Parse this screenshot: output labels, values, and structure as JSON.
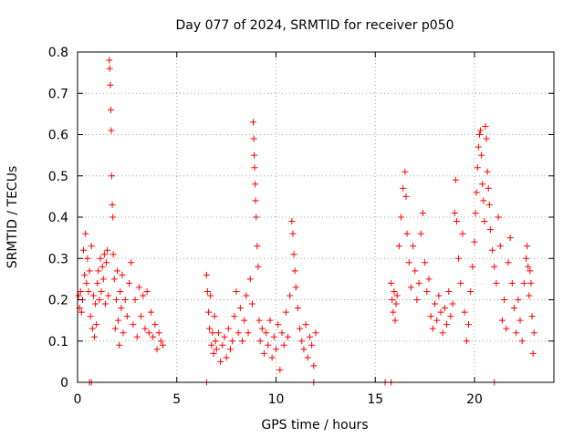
{
  "chart_data": {
    "type": "scatter",
    "title": "Day 077 of 2024, SRMTID for receiver p050",
    "xlabel": "GPS time / hours",
    "ylabel": "SRMTID / TECUs",
    "xlim": [
      0,
      24
    ],
    "ylim": [
      0,
      0.8
    ],
    "xticks": [
      0,
      5,
      10,
      15,
      20
    ],
    "xtick_labels": [
      "0",
      "5",
      "10",
      "15",
      "20"
    ],
    "yticks": [
      0,
      0.1,
      0.2,
      0.3,
      0.4,
      0.5,
      0.6,
      0.7,
      0.8
    ],
    "ytick_labels": [
      "0",
      "0.1",
      "0.2",
      "0.3",
      "0.4",
      "0.5",
      "0.6",
      "0.7",
      "0.8"
    ],
    "grid": true,
    "marker": "+",
    "color": "#ff0000",
    "series": [
      {
        "name": "SRMTID",
        "points": [
          [
            0.05,
            0.21
          ],
          [
            0.1,
            0.18
          ],
          [
            0.15,
            0.22
          ],
          [
            0.2,
            0.17
          ],
          [
            0.25,
            0.2
          ],
          [
            0.3,
            0.32
          ],
          [
            0.35,
            0.26
          ],
          [
            0.4,
            0.36
          ],
          [
            0.45,
            0.24
          ],
          [
            0.5,
            0.3
          ],
          [
            0.55,
            0.22
          ],
          [
            0.6,
            0.27
          ],
          [
            0.65,
            0.16
          ],
          [
            0.7,
            0.33
          ],
          [
            0.75,
            0.13
          ],
          [
            0.8,
            0.21
          ],
          [
            0.85,
            0.11
          ],
          [
            0.9,
            0.19
          ],
          [
            0.95,
            0.14
          ],
          [
            1.0,
            0.24
          ],
          [
            1.05,
            0.27
          ],
          [
            1.1,
            0.2
          ],
          [
            1.15,
            0.3
          ],
          [
            1.2,
            0.22
          ],
          [
            1.25,
            0.28
          ],
          [
            1.3,
            0.25
          ],
          [
            1.35,
            0.31
          ],
          [
            1.4,
            0.19
          ],
          [
            1.45,
            0.29
          ],
          [
            1.5,
            0.32
          ],
          [
            1.55,
            0.21
          ],
          [
            1.6,
            0.78
          ],
          [
            1.62,
            0.76
          ],
          [
            1.65,
            0.72
          ],
          [
            1.68,
            0.66
          ],
          [
            1.7,
            0.61
          ],
          [
            1.72,
            0.5
          ],
          [
            1.75,
            0.43
          ],
          [
            1.78,
            0.4
          ],
          [
            1.8,
            0.31
          ],
          [
            1.85,
            0.25
          ],
          [
            1.9,
            0.13
          ],
          [
            1.95,
            0.2
          ],
          [
            2.0,
            0.27
          ],
          [
            2.05,
            0.15
          ],
          [
            2.1,
            0.09
          ],
          [
            2.15,
            0.22
          ],
          [
            2.2,
            0.18
          ],
          [
            2.25,
            0.26
          ],
          [
            2.3,
            0.12
          ],
          [
            2.4,
            0.2
          ],
          [
            2.5,
            0.16
          ],
          [
            2.6,
            0.24
          ],
          [
            2.7,
            0.29
          ],
          [
            2.8,
            0.14
          ],
          [
            2.9,
            0.2
          ],
          [
            3.0,
            0.11
          ],
          [
            3.1,
            0.23
          ],
          [
            3.2,
            0.16
          ],
          [
            3.3,
            0.21
          ],
          [
            3.4,
            0.13
          ],
          [
            3.5,
            0.22
          ],
          [
            3.6,
            0.12
          ],
          [
            3.7,
            0.17
          ],
          [
            3.8,
            0.11
          ],
          [
            3.9,
            0.14
          ],
          [
            4.0,
            0.08
          ],
          [
            4.1,
            0.12
          ],
          [
            4.2,
            0.1
          ],
          [
            4.3,
            0.09
          ],
          [
            0.6,
            0.0
          ],
          [
            0.7,
            0.0
          ],
          [
            6.5,
            0.26
          ],
          [
            6.55,
            0.22
          ],
          [
            6.6,
            0.17
          ],
          [
            6.65,
            0.13
          ],
          [
            6.7,
            0.21
          ],
          [
            6.75,
            0.09
          ],
          [
            6.8,
            0.12
          ],
          [
            6.85,
            0.07
          ],
          [
            6.9,
            0.16
          ],
          [
            6.95,
            0.1
          ],
          [
            7.0,
            0.08
          ],
          [
            7.1,
            0.12
          ],
          [
            7.2,
            0.05
          ],
          [
            7.3,
            0.09
          ],
          [
            7.4,
            0.11
          ],
          [
            7.5,
            0.06
          ],
          [
            7.6,
            0.13
          ],
          [
            7.7,
            0.08
          ],
          [
            7.8,
            0.1
          ],
          [
            7.9,
            0.16
          ],
          [
            8.0,
            0.22
          ],
          [
            8.1,
            0.12
          ],
          [
            8.2,
            0.18
          ],
          [
            8.3,
            0.1
          ],
          [
            8.4,
            0.15
          ],
          [
            8.5,
            0.21
          ],
          [
            8.6,
            0.12
          ],
          [
            8.7,
            0.25
          ],
          [
            8.8,
            0.19
          ],
          [
            8.85,
            0.63
          ],
          [
            8.88,
            0.59
          ],
          [
            8.9,
            0.55
          ],
          [
            8.92,
            0.52
          ],
          [
            8.95,
            0.48
          ],
          [
            8.97,
            0.44
          ],
          [
            9.0,
            0.4
          ],
          [
            9.05,
            0.33
          ],
          [
            9.1,
            0.28
          ],
          [
            9.15,
            0.15
          ],
          [
            9.2,
            0.1
          ],
          [
            9.3,
            0.13
          ],
          [
            9.4,
            0.07
          ],
          [
            9.5,
            0.12
          ],
          [
            9.6,
            0.09
          ],
          [
            9.7,
            0.15
          ],
          [
            9.8,
            0.06
          ],
          [
            9.9,
            0.11
          ],
          [
            10.0,
            0.08
          ],
          [
            10.1,
            0.14
          ],
          [
            10.2,
            0.03
          ],
          [
            10.3,
            0.12
          ],
          [
            10.4,
            0.09
          ],
          [
            10.5,
            0.17
          ],
          [
            10.6,
            0.11
          ],
          [
            10.7,
            0.21
          ],
          [
            10.8,
            0.39
          ],
          [
            10.85,
            0.36
          ],
          [
            10.9,
            0.31
          ],
          [
            10.95,
            0.27
          ],
          [
            11.0,
            0.23
          ],
          [
            11.1,
            0.18
          ],
          [
            11.2,
            0.13
          ],
          [
            11.3,
            0.1
          ],
          [
            11.4,
            0.08
          ],
          [
            11.5,
            0.14
          ],
          [
            11.6,
            0.06
          ],
          [
            11.7,
            0.11
          ],
          [
            11.8,
            0.09
          ],
          [
            11.9,
            0.04
          ],
          [
            12.0,
            0.12
          ],
          [
            6.5,
            0.0
          ],
          [
            11.9,
            0.0
          ],
          [
            15.8,
            0.24
          ],
          [
            15.85,
            0.2
          ],
          [
            15.9,
            0.17
          ],
          [
            15.95,
            0.22
          ],
          [
            16.0,
            0.15
          ],
          [
            16.05,
            0.19
          ],
          [
            16.1,
            0.21
          ],
          [
            16.2,
            0.33
          ],
          [
            16.3,
            0.4
          ],
          [
            16.4,
            0.47
          ],
          [
            16.5,
            0.51
          ],
          [
            16.55,
            0.45
          ],
          [
            16.6,
            0.36
          ],
          [
            16.7,
            0.29
          ],
          [
            16.8,
            0.23
          ],
          [
            16.9,
            0.33
          ],
          [
            17.0,
            0.27
          ],
          [
            17.1,
            0.2
          ],
          [
            17.2,
            0.24
          ],
          [
            17.3,
            0.36
          ],
          [
            17.4,
            0.41
          ],
          [
            17.5,
            0.29
          ],
          [
            17.6,
            0.22
          ],
          [
            17.7,
            0.25
          ],
          [
            17.8,
            0.16
          ],
          [
            17.9,
            0.13
          ],
          [
            18.0,
            0.19
          ],
          [
            18.1,
            0.15
          ],
          [
            18.2,
            0.21
          ],
          [
            18.3,
            0.17
          ],
          [
            18.4,
            0.12
          ],
          [
            18.5,
            0.18
          ],
          [
            18.6,
            0.14
          ],
          [
            18.7,
            0.22
          ],
          [
            18.8,
            0.16
          ],
          [
            18.9,
            0.19
          ],
          [
            19.0,
            0.41
          ],
          [
            19.05,
            0.49
          ],
          [
            19.1,
            0.39
          ],
          [
            19.2,
            0.3
          ],
          [
            19.3,
            0.24
          ],
          [
            19.4,
            0.36
          ],
          [
            19.5,
            0.17
          ],
          [
            19.6,
            0.1
          ],
          [
            19.7,
            0.14
          ],
          [
            19.8,
            0.22
          ],
          [
            19.9,
            0.28
          ],
          [
            20.0,
            0.34
          ],
          [
            20.05,
            0.41
          ],
          [
            20.1,
            0.46
          ],
          [
            20.15,
            0.52
          ],
          [
            20.2,
            0.57
          ],
          [
            20.25,
            0.6
          ],
          [
            20.3,
            0.61
          ],
          [
            20.35,
            0.55
          ],
          [
            20.4,
            0.48
          ],
          [
            20.45,
            0.44
          ],
          [
            20.5,
            0.39
          ],
          [
            20.55,
            0.62
          ],
          [
            20.6,
            0.59
          ],
          [
            20.65,
            0.51
          ],
          [
            20.7,
            0.47
          ],
          [
            20.75,
            0.43
          ],
          [
            20.8,
            0.37
          ],
          [
            20.9,
            0.32
          ],
          [
            21.0,
            0.28
          ],
          [
            21.1,
            0.24
          ],
          [
            21.2,
            0.4
          ],
          [
            21.3,
            0.33
          ],
          [
            21.4,
            0.15
          ],
          [
            21.5,
            0.2
          ],
          [
            21.6,
            0.13
          ],
          [
            21.7,
            0.29
          ],
          [
            21.8,
            0.35
          ],
          [
            21.9,
            0.24
          ],
          [
            22.0,
            0.18
          ],
          [
            22.1,
            0.12
          ],
          [
            22.2,
            0.2
          ],
          [
            22.3,
            0.15
          ],
          [
            22.4,
            0.1
          ],
          [
            22.5,
            0.24
          ],
          [
            22.6,
            0.3
          ],
          [
            22.65,
            0.33
          ],
          [
            22.7,
            0.28
          ],
          [
            22.75,
            0.21
          ],
          [
            22.8,
            0.27
          ],
          [
            22.85,
            0.24
          ],
          [
            22.9,
            0.16
          ],
          [
            22.95,
            0.07
          ],
          [
            23.0,
            0.12
          ],
          [
            15.5,
            0.0
          ],
          [
            15.8,
            0.0
          ],
          [
            21.0,
            0.0
          ]
        ]
      }
    ]
  }
}
